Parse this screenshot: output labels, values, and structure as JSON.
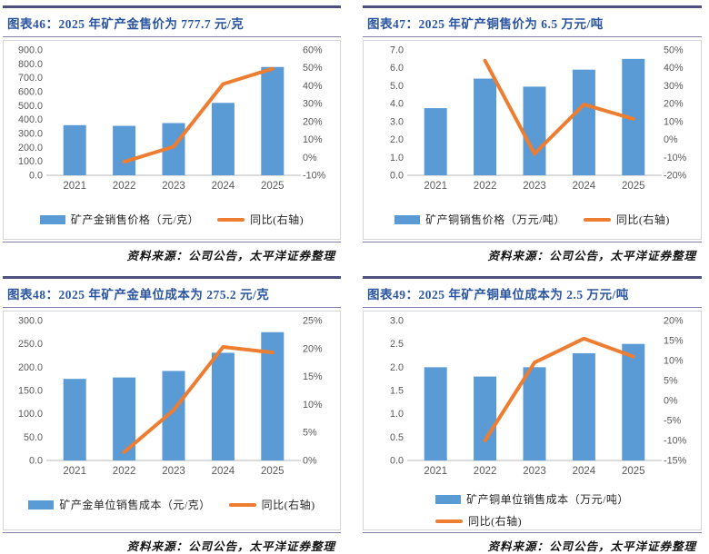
{
  "colors": {
    "bar": "#5B9BD5",
    "line": "#ED7D31",
    "title_text": "#2B55A1",
    "rule_dark": "#50507F",
    "rule_light": "#8080A8",
    "axis_text": "#595959",
    "baseline": "#C8C8C8",
    "box_border": "#D6D6D6",
    "legend_text": "#262626",
    "source_text": "#141414"
  },
  "chart_data": [
    {
      "type": "bar",
      "title": "图表46：2025 年矿产金售价为 777.7 元/克",
      "categories": [
        "2021",
        "2022",
        "2023",
        "2024",
        "2025"
      ],
      "series": [
        {
          "name": "矿产金销售价格（元/克）",
          "kind": "bar",
          "axis": "left",
          "values": [
            360,
            355,
            375,
            520,
            777.7
          ]
        },
        {
          "name": "同比(右轴)",
          "kind": "line",
          "axis": "right",
          "values": [
            null,
            -2.5,
            6,
            41,
            49.5
          ]
        }
      ],
      "left_axis": {
        "min": 0,
        "max": 900,
        "ticks": [
          "900.0",
          "800.0",
          "700.0",
          "600.0",
          "500.0",
          "400.0",
          "300.0",
          "200.0",
          "100.0",
          "0.0"
        ]
      },
      "right_axis": {
        "min": -10,
        "max": 60,
        "ticks": [
          "60%",
          "50%",
          "40%",
          "30%",
          "20%",
          "10%",
          "0%",
          "-10%"
        ]
      },
      "legend_rows": 1,
      "grid": "off",
      "legend_position": "bottom",
      "source": "资料来源：公司公告，太平洋证券整理"
    },
    {
      "type": "bar",
      "title": "图表47：2025 年矿产铜售价为 6.5 万元/吨",
      "categories": [
        "2021",
        "2022",
        "2023",
        "2024",
        "2025"
      ],
      "series": [
        {
          "name": "矿产铜销售价格（万元/吨）",
          "kind": "bar",
          "axis": "left",
          "values": [
            3.75,
            5.4,
            4.95,
            5.9,
            6.5
          ]
        },
        {
          "name": "同比(右轴)",
          "kind": "line",
          "axis": "right",
          "values": [
            null,
            44,
            -8,
            19.5,
            11.5
          ]
        }
      ],
      "left_axis": {
        "min": 0,
        "max": 7,
        "ticks": [
          "7.0",
          "6.0",
          "5.0",
          "4.0",
          "3.0",
          "2.0",
          "1.0",
          "0.0"
        ]
      },
      "right_axis": {
        "min": -20,
        "max": 50,
        "ticks": [
          "50%",
          "40%",
          "30%",
          "20%",
          "10%",
          "0%",
          "-10%",
          "-20%"
        ]
      },
      "legend_rows": 1,
      "grid": "off",
      "legend_position": "bottom",
      "source": "资料来源：公司公告，太平洋证券整理"
    },
    {
      "type": "bar",
      "title": "图表48：2025 年矿产金单位成本为 275.2 元/克",
      "categories": [
        "2021",
        "2022",
        "2023",
        "2024",
        "2025"
      ],
      "series": [
        {
          "name": "矿产金单位销售成本（元/克）",
          "kind": "bar",
          "axis": "left",
          "values": [
            175,
            178,
            192,
            231,
            275.2
          ]
        },
        {
          "name": "同比(右轴)",
          "kind": "line",
          "axis": "right",
          "values": [
            null,
            1.5,
            9,
            20.3,
            19.3
          ]
        }
      ],
      "left_axis": {
        "min": 0,
        "max": 300,
        "ticks": [
          "300.0",
          "250.0",
          "200.0",
          "150.0",
          "100.0",
          "50.0",
          "0.0"
        ]
      },
      "right_axis": {
        "min": 0,
        "max": 25,
        "ticks": [
          "25%",
          "20%",
          "15%",
          "10%",
          "5%",
          "0%"
        ]
      },
      "legend_rows": 1,
      "grid": "off",
      "legend_position": "bottom",
      "source": "资料来源：公司公告，太平洋证券整理"
    },
    {
      "type": "bar",
      "title": "图表49：2025 年矿产铜单位成本为 2.5 万元/吨",
      "categories": [
        "2021",
        "2022",
        "2023",
        "2024",
        "2025"
      ],
      "series": [
        {
          "name": "矿产铜单位销售成本（万元/吨）",
          "kind": "bar",
          "axis": "left",
          "values": [
            2.0,
            1.8,
            2.0,
            2.3,
            2.5
          ]
        },
        {
          "name": "同比(右轴)",
          "kind": "line",
          "axis": "right",
          "values": [
            null,
            -10,
            9.5,
            15.5,
            11
          ]
        }
      ],
      "left_axis": {
        "min": 0,
        "max": 3,
        "ticks": [
          "3.0",
          "2.5",
          "2.0",
          "1.5",
          "1.0",
          "0.5",
          "0.0"
        ]
      },
      "right_axis": {
        "min": -15,
        "max": 20,
        "ticks": [
          "20%",
          "15%",
          "10%",
          "5%",
          "0%",
          "-5%",
          "-10%",
          "-15%"
        ]
      },
      "legend_rows": 2,
      "grid": "off",
      "legend_position": "bottom",
      "source": "资料来源：公司公告，太平洋证券整理"
    }
  ]
}
